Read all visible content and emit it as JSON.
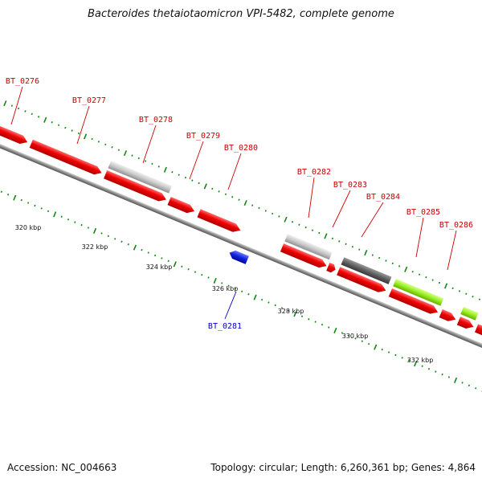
{
  "title": "Bacteroides thetaiotaomicron VPI-5482, complete genome",
  "footer": {
    "accession": "Accession: NC_004663",
    "summary": "Topology: circular; Length: 6,260,361 bp; Genes: 4,864"
  },
  "colors": {
    "forward_cds": "#ee0000",
    "gray_feature": "#c8c8c8",
    "dark_feature": "#606060",
    "green_feature": "#99ee22",
    "reverse_cds": "#1122dd",
    "tick": "#118811",
    "label_red": "#cc0000",
    "label_blue": "#0000cc"
  },
  "genes": [
    {
      "id": "BT_0276"
    },
    {
      "id": "BT_0277"
    },
    {
      "id": "BT_0278"
    },
    {
      "id": "BT_0279"
    },
    {
      "id": "BT_0280"
    },
    {
      "id": "BT_0281"
    },
    {
      "id": "BT_0282"
    },
    {
      "id": "BT_0283"
    },
    {
      "id": "BT_0284"
    },
    {
      "id": "BT_0285"
    },
    {
      "id": "BT_0286"
    }
  ],
  "kbp_labels": [
    "320 kbp",
    "322 kbp",
    "324 kbp",
    "326 kbp",
    "328 kbp",
    "330 kbp",
    "332 kbp"
  ]
}
